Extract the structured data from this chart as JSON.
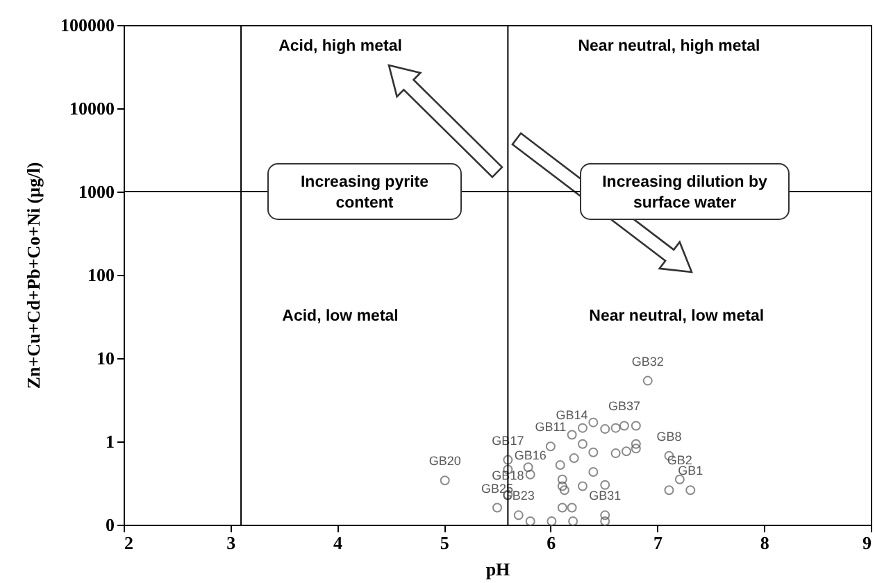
{
  "chart_data": {
    "type": "scatter",
    "xlabel": "pH",
    "ylabel": "Zn+Cu+Cd+Pb+Co+Ni (µg/l)",
    "xlim": [
      2,
      9
    ],
    "xticks": [
      2,
      3,
      4,
      5,
      6,
      7,
      8,
      9
    ],
    "ylim": [
      0.1,
      100000
    ],
    "yticks": [
      {
        "value": 0.1,
        "label": "0"
      },
      1,
      10,
      100,
      1000,
      10000,
      100000
    ],
    "log": "y",
    "grid": false,
    "marker": "circle",
    "x": [
      5.01,
      5.5,
      5.6,
      5.6,
      5.6,
      5.7,
      5.81,
      5.79,
      5.81,
      6.0,
      6.01,
      6.11,
      6.2,
      6.21,
      6.11,
      6.11,
      6.13,
      6.09,
      6.22,
      6.3,
      6.4,
      6.4,
      6.4,
      6.3,
      6.51,
      6.51,
      6.51,
      6.51,
      6.61,
      6.61,
      6.71,
      6.8,
      6.8,
      6.8,
      6.69,
      7.11,
      7.21,
      7.11,
      7.31,
      6.3,
      6.2,
      6.91
    ],
    "series": [
      {
        "color": "#595959",
        "values": [
          0.34,
          0.16,
          0.6,
          0.46,
          0.23,
          0.13,
          0.11,
          0.49,
          0.4,
          0.87,
          0.11,
          0.16,
          0.16,
          0.11,
          0.35,
          0.29,
          0.26,
          0.52,
          0.63,
          1.45,
          1.69,
          0.74,
          0.43,
          0.29,
          0.3,
          0.13,
          0.11,
          1.41,
          1.45,
          0.72,
          0.76,
          0.93,
          0.82,
          1.54,
          1.54,
          0.67,
          0.35,
          0.26,
          0.26,
          0.93,
          1.2,
          5.35
        ],
        "value_labels": [
          "GB20",
          "GB25",
          "GB17",
          null,
          "GB18",
          "GB23",
          null,
          null,
          "GB16",
          "GB11",
          null,
          null,
          null,
          null,
          null,
          null,
          null,
          null,
          null,
          null,
          null,
          null,
          null,
          null,
          null,
          "GB31",
          null,
          null,
          null,
          null,
          null,
          null,
          null,
          null,
          "GB37",
          "GB8",
          "GB2",
          null,
          "GB1",
          null,
          "GB14",
          "GB32"
        ]
      }
    ],
    "ref_lines": [
      {
        "axis": "x",
        "value": 3.1,
        "color": "#000000"
      },
      {
        "axis": "x",
        "value": 5.6,
        "color": "#000000"
      },
      {
        "axis": "y",
        "value": 1000,
        "color": "#000000"
      }
    ],
    "annotations": [
      "Acid, high metal",
      "Near neutral, high metal",
      "Acid, low metal",
      "Near neutral, low metal",
      "Increasing pyrite\ncontent",
      "Increasing dilution by\nsurface water"
    ]
  }
}
